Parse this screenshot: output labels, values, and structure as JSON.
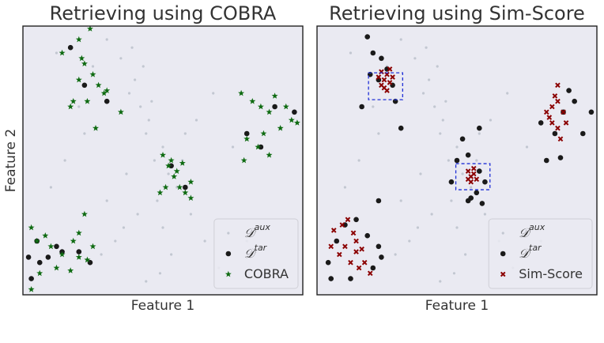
{
  "chart_data": [
    {
      "type": "scatter",
      "title": "Retrieving using COBRA",
      "xlabel": "Feature 1",
      "ylabel": "Feature 2",
      "xlim": [
        0,
        100
      ],
      "ylim": [
        0,
        100
      ],
      "legend": "lower right",
      "series": [
        {
          "name": "𝒟",
          "sup": "aux",
          "color": "#9aa3b0",
          "marker": "dot",
          "x": [
            30,
            35,
            40,
            42,
            45,
            38,
            44,
            50,
            47,
            52,
            55,
            48,
            41,
            36,
            33,
            28,
            25,
            20,
            15,
            10,
            60,
            65,
            70,
            58,
            62,
            46,
            43,
            39,
            50,
            53,
            44,
            49,
            37,
            57,
            30,
            22,
            68,
            75,
            80,
            12
          ],
          "values": [
            95,
            88,
            80,
            70,
            65,
            75,
            60,
            55,
            50,
            45,
            40,
            35,
            30,
            25,
            20,
            15,
            85,
            70,
            50,
            40,
            30,
            20,
            10,
            60,
            65,
            72,
            85,
            92,
            25,
            15,
            5,
            8,
            45,
            50,
            35,
            60,
            75,
            55,
            20,
            90
          ]
        },
        {
          "name": "𝒟",
          "sup": "tar",
          "color": "#1a1a1a",
          "marker": "circle",
          "x": [
            3,
            2,
            5,
            9,
            12,
            20,
            24,
            17,
            22,
            30,
            53,
            58,
            90,
            97,
            85,
            80,
            14,
            6
          ],
          "values": [
            6,
            14,
            20,
            14,
            18,
            16,
            12,
            92,
            78,
            72,
            48,
            40,
            70,
            68,
            55,
            60,
            16,
            12
          ]
        },
        {
          "name": "COBRA",
          "color": "#0f6b12",
          "marker": "star",
          "x": [
            20,
            24,
            14,
            22,
            25,
            27,
            20,
            30,
            18,
            23,
            35,
            17,
            26,
            29,
            21,
            50,
            52,
            54,
            56,
            51,
            58,
            60,
            53,
            55,
            60,
            49,
            57,
            78,
            82,
            85,
            88,
            90,
            94,
            96,
            98,
            86,
            80,
            84,
            79,
            92,
            88,
            3,
            5,
            8,
            10,
            14,
            18,
            20,
            23,
            22,
            20,
            6,
            12,
            17,
            3,
            25
          ],
          "values": [
            95,
            99,
            90,
            86,
            82,
            78,
            80,
            76,
            72,
            72,
            68,
            70,
            62,
            75,
            88,
            52,
            48,
            44,
            40,
            40,
            38,
            36,
            50,
            46,
            42,
            38,
            49,
            75,
            72,
            70,
            68,
            74,
            70,
            65,
            64,
            60,
            58,
            55,
            50,
            62,
            52,
            25,
            20,
            22,
            18,
            15,
            20,
            14,
            13,
            30,
            23,
            8,
            10,
            9,
            2,
            18
          ]
        }
      ]
    },
    {
      "type": "scatter",
      "title": "Retrieving using Sim-Score",
      "xlabel": "Feature 1",
      "xlim": [
        0,
        100
      ],
      "ylim": [
        0,
        100
      ],
      "legend": "lower right",
      "boxes": [
        {
          "x": [
            18.4,
            30.6
          ],
          "y": [
            72.6,
            82.6
          ]
        },
        {
          "x": [
            49.6,
            61.8
          ],
          "y": [
            39.1,
            48.8
          ]
        }
      ],
      "box_color": "#1f2fd6",
      "series": [
        {
          "name": "𝒟",
          "sup": "aux",
          "color": "#9aa3b0",
          "marker": "dot",
          "x": [
            30,
            35,
            40,
            42,
            45,
            38,
            44,
            50,
            47,
            52,
            55,
            48,
            41,
            36,
            33,
            28,
            25,
            20,
            15,
            10,
            60,
            65,
            70,
            58,
            62,
            46,
            43,
            39,
            50,
            53,
            44,
            49,
            37,
            57,
            30,
            22,
            68,
            75,
            80,
            12
          ],
          "values": [
            95,
            88,
            80,
            70,
            65,
            75,
            60,
            55,
            50,
            45,
            40,
            35,
            30,
            25,
            20,
            15,
            85,
            70,
            50,
            40,
            30,
            20,
            10,
            60,
            65,
            72,
            85,
            92,
            25,
            15,
            5,
            8,
            45,
            50,
            35,
            60,
            75,
            55,
            20,
            90
          ]
        },
        {
          "name": "𝒟",
          "sup": "tar",
          "color": "#1a1a1a",
          "marker": "circle",
          "x": [
            18,
            20,
            23,
            25,
            22,
            16,
            28,
            27,
            30,
            19,
            50,
            54,
            58,
            60,
            57,
            54,
            59,
            48,
            52,
            58,
            55,
            88,
            85,
            92,
            82,
            95,
            98,
            80,
            90,
            87,
            10,
            14,
            18,
            22,
            7,
            4,
            5,
            20,
            12,
            23,
            22
          ],
          "values": [
            96,
            90,
            88,
            84,
            80,
            70,
            72,
            78,
            62,
            82,
            50,
            52,
            46,
            42,
            38,
            35,
            34,
            42,
            58,
            62,
            36,
            68,
            60,
            72,
            50,
            60,
            68,
            64,
            76,
            51,
            26,
            28,
            22,
            18,
            20,
            12,
            6,
            10,
            6,
            14,
            35
          ]
        },
        {
          "name": "Sim-Score",
          "color": "#8b0000",
          "marker": "x",
          "x": [
            24,
            25,
            23,
            26,
            24,
            22,
            25,
            27,
            23,
            26,
            55,
            56,
            54,
            55,
            57,
            56,
            54,
            84,
            86,
            82,
            84,
            88,
            86,
            85,
            83,
            87,
            89,
            86,
            6,
            9,
            11,
            13,
            10,
            14,
            17,
            15,
            12,
            8,
            19,
            14,
            16,
            5
          ],
          "values": [
            80,
            82,
            78,
            79,
            77,
            81,
            76,
            81,
            83,
            84,
            44,
            45,
            46,
            42,
            43,
            47,
            43,
            70,
            72,
            68,
            64,
            68,
            62,
            74,
            66,
            58,
            64,
            78,
            24,
            26,
            28,
            23,
            18,
            16,
            12,
            10,
            12,
            15,
            8,
            20,
            17,
            18
          ]
        }
      ]
    }
  ]
}
